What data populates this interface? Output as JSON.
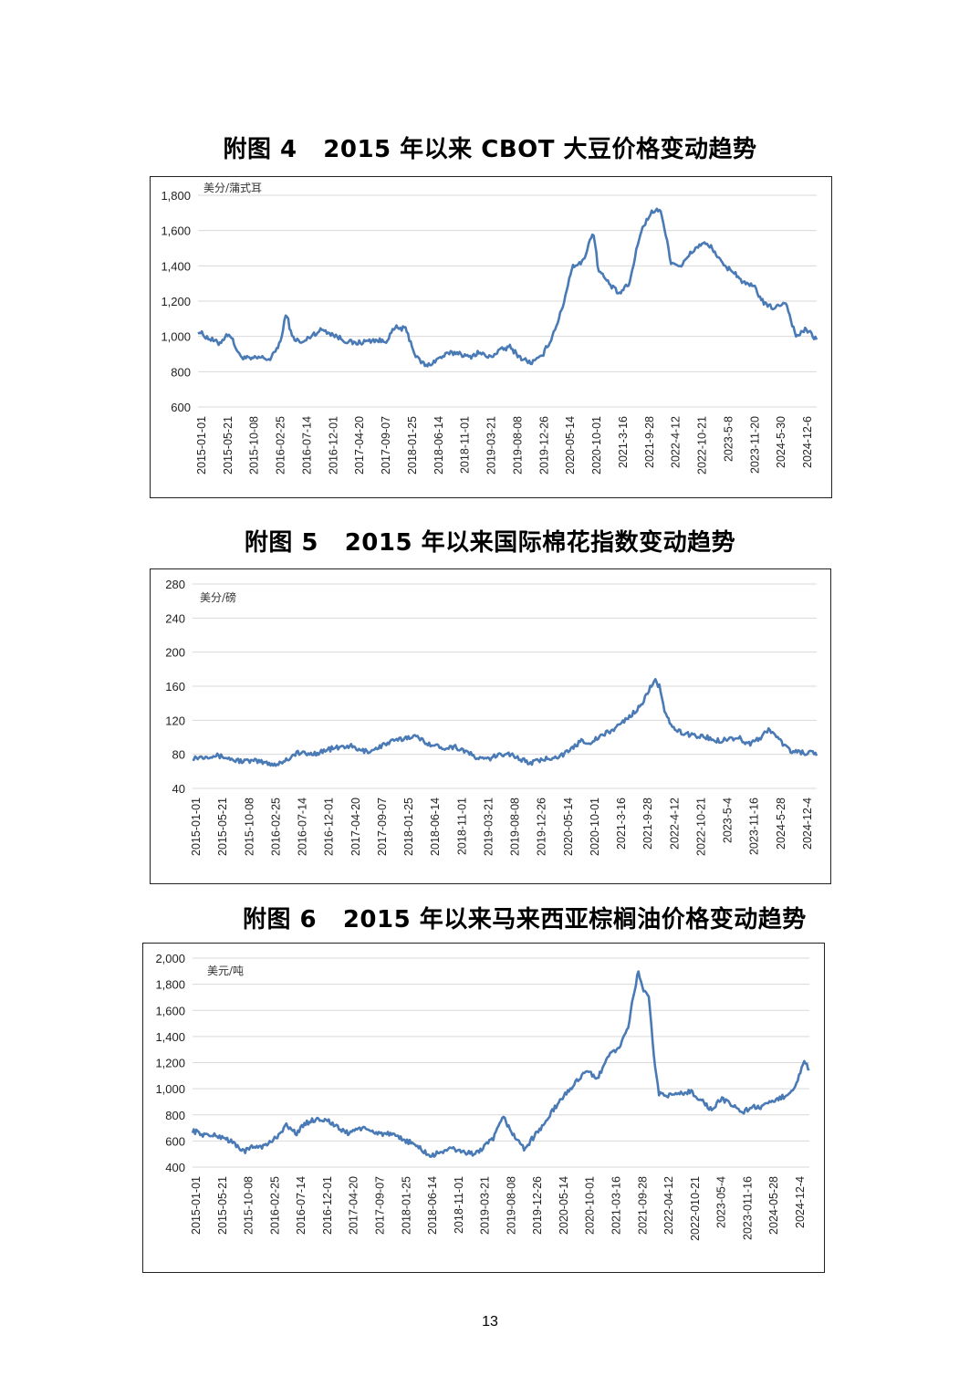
{
  "page": {
    "page_number": "13"
  },
  "figures": [
    {
      "label": "附图 4",
      "title": "2015 年以来 CBOT 大豆价格变动趋势"
    },
    {
      "label": "附图 5",
      "title": "2015 年以来国际棉花指数变动趋势"
    },
    {
      "label": "附图 6",
      "title": "2015 年以来马来西亚棕榈油价格变动趋势"
    }
  ],
  "chart_data": [
    {
      "type": "line",
      "unit": "美分/蒲式耳",
      "ylim": [
        600,
        1800
      ],
      "yticks": [
        "600",
        "800",
        "1,000",
        "1,200",
        "1,400",
        "1,600",
        "1,800"
      ],
      "grid": true,
      "xlabels": [
        "2015-01-01",
        "2015-05-21",
        "2015-10-08",
        "2016-02-25",
        "2016-07-14",
        "2016-12-01",
        "2017-04-20",
        "2017-09-07",
        "2018-01-25",
        "2018-06-14",
        "2018-11-01",
        "2019-03-21",
        "2019-08-08",
        "2019-12-26",
        "2020-05-14",
        "2020-10-01",
        "2021-3-16",
        "2021-9-28",
        "2022-4-12",
        "2022-10-21",
        "2023-5-8",
        "2023-11-20",
        "2024-5-30",
        "2024-12-6"
      ],
      "series": [
        {
          "color": "#4a7ab5",
          "x": [
            "2015-01",
            "2015-03",
            "2015-05",
            "2015-07",
            "2015-09",
            "2015-11",
            "2016-01",
            "2016-03",
            "2016-05",
            "2016-06",
            "2016-07",
            "2016-09",
            "2016-11",
            "2017-01",
            "2017-03",
            "2017-05",
            "2017-07",
            "2017-09",
            "2017-11",
            "2018-01",
            "2018-03",
            "2018-05",
            "2018-07",
            "2018-09",
            "2018-11",
            "2019-01",
            "2019-03",
            "2019-05",
            "2019-07",
            "2019-09",
            "2019-11",
            "2020-01",
            "2020-03",
            "2020-05",
            "2020-07",
            "2020-09",
            "2020-11",
            "2021-01",
            "2021-03",
            "2021-05",
            "2021-06",
            "2021-08",
            "2021-10",
            "2021-12",
            "2022-02",
            "2022-04",
            "2022-06",
            "2022-08",
            "2022-10",
            "2022-12",
            "2023-02",
            "2023-04",
            "2023-06",
            "2023-08",
            "2023-10",
            "2023-12",
            "2024-02",
            "2024-04",
            "2024-06",
            "2024-08",
            "2024-10",
            "2024-12"
          ],
          "y": [
            1030,
            990,
            960,
            1020,
            890,
            870,
            880,
            870,
            980,
            1140,
            1000,
            960,
            1010,
            1040,
            1010,
            980,
            960,
            970,
            980,
            970,
            1050,
            1040,
            880,
            830,
            870,
            900,
            910,
            880,
            910,
            880,
            920,
            940,
            880,
            850,
            880,
            990,
            1150,
            1400,
            1420,
            1600,
            1380,
            1300,
            1240,
            1300,
            1580,
            1700,
            1720,
            1420,
            1400,
            1480,
            1530,
            1500,
            1400,
            1370,
            1300,
            1280,
            1180,
            1160,
            1200,
            1000,
            1040,
            980
          ]
        }
      ]
    },
    {
      "type": "line",
      "unit": "美分/磅",
      "ylim": [
        40,
        280
      ],
      "yticks": [
        "40",
        "80",
        "120",
        "160",
        "200",
        "240",
        "280"
      ],
      "grid": true,
      "xlabels": [
        "2015-01-01",
        "2015-05-21",
        "2015-10-08",
        "2016-02-25",
        "2016-07-14",
        "2016-12-01",
        "2017-04-20",
        "2017-09-07",
        "2018-01-25",
        "2018-06-14",
        "2018-11-01",
        "2019-03-21",
        "2019-08-08",
        "2019-12-26",
        "2020-05-14",
        "2020-10-01",
        "2021-3-16",
        "2021-9-28",
        "2022-4-12",
        "2022-10-21",
        "2023-5-4",
        "2023-11-16",
        "2024-5-28",
        "2024-12-4"
      ],
      "series": [
        {
          "color": "#4a7ab5",
          "x": [
            "2015-01",
            "2015-03",
            "2015-05",
            "2015-07",
            "2015-09",
            "2015-11",
            "2016-01",
            "2016-03",
            "2016-05",
            "2016-07",
            "2016-09",
            "2016-11",
            "2017-01",
            "2017-03",
            "2017-05",
            "2017-07",
            "2017-09",
            "2017-11",
            "2018-01",
            "2018-03",
            "2018-05",
            "2018-07",
            "2018-09",
            "2018-11",
            "2019-01",
            "2019-03",
            "2019-05",
            "2019-07",
            "2019-09",
            "2019-11",
            "2020-01",
            "2020-03",
            "2020-05",
            "2020-07",
            "2020-09",
            "2020-11",
            "2021-01",
            "2021-03",
            "2021-05",
            "2021-07",
            "2021-09",
            "2021-11",
            "2022-01",
            "2022-03",
            "2022-05",
            "2022-06",
            "2022-07",
            "2022-09",
            "2022-11",
            "2023-01",
            "2023-03",
            "2023-05",
            "2023-07",
            "2023-09",
            "2023-11",
            "2024-01",
            "2024-03",
            "2024-05",
            "2024-07",
            "2024-09",
            "2024-11",
            "2024-12"
          ],
          "y": [
            76,
            77,
            79,
            77,
            73,
            72,
            72,
            70,
            68,
            74,
            82,
            80,
            82,
            86,
            88,
            90,
            84,
            84,
            90,
            95,
            98,
            102,
            96,
            90,
            88,
            89,
            84,
            76,
            74,
            78,
            82,
            76,
            70,
            72,
            76,
            78,
            84,
            96,
            94,
            102,
            108,
            118,
            128,
            142,
            168,
            160,
            128,
            108,
            104,
            102,
            100,
            96,
            98,
            100,
            92,
            98,
            110,
            96,
            84,
            82,
            82,
            78
          ]
        }
      ]
    },
    {
      "type": "line",
      "unit": "美元/吨",
      "ylim": [
        400,
        2000
      ],
      "yticks": [
        "400",
        "600",
        "800",
        "1,000",
        "1,200",
        "1,400",
        "1,600",
        "1,800",
        "2,000"
      ],
      "grid": true,
      "xlabels": [
        "2015-01-01",
        "2015-05-21",
        "2015-10-08",
        "2016-02-25",
        "2016-07-14",
        "2016-12-01",
        "2017-04-20",
        "2017-09-07",
        "2018-01-25",
        "2018-06-14",
        "2018-11-01",
        "2019-03-21",
        "2019-08-08",
        "2019-12-26",
        "2020-05-14",
        "2020-10-01",
        "2021-03-16",
        "2021-09-28",
        "2022-04-12",
        "2022-010-21",
        "2023-05-4",
        "2023-011-16",
        "2024-05-28",
        "2024-12-4"
      ],
      "series": [
        {
          "color": "#4a7ab5",
          "x": [
            "2015-01",
            "2015-03",
            "2015-05",
            "2015-07",
            "2015-09",
            "2015-11",
            "2016-01",
            "2016-03",
            "2016-05",
            "2016-07",
            "2016-09",
            "2016-11",
            "2017-01",
            "2017-03",
            "2017-05",
            "2017-07",
            "2017-09",
            "2017-11",
            "2018-01",
            "2018-03",
            "2018-05",
            "2018-07",
            "2018-09",
            "2018-11",
            "2019-01",
            "2019-03",
            "2019-05",
            "2019-07",
            "2019-09",
            "2019-11",
            "2020-01",
            "2020-03",
            "2020-05",
            "2020-07",
            "2020-09",
            "2020-11",
            "2021-01",
            "2021-03",
            "2021-05",
            "2021-07",
            "2021-09",
            "2021-11",
            "2022-01",
            "2022-02",
            "2022-03",
            "2022-04",
            "2022-05",
            "2022-06",
            "2022-07",
            "2022-09",
            "2022-11",
            "2023-01",
            "2023-03",
            "2023-05",
            "2023-07",
            "2023-09",
            "2023-11",
            "2024-01",
            "2024-03",
            "2024-05",
            "2024-07",
            "2024-09",
            "2024-11",
            "2024-12"
          ],
          "y": [
            680,
            650,
            640,
            630,
            580,
            520,
            560,
            560,
            620,
            720,
            660,
            740,
            770,
            760,
            700,
            660,
            700,
            680,
            660,
            650,
            620,
            590,
            540,
            480,
            520,
            540,
            520,
            500,
            540,
            620,
            780,
            640,
            540,
            640,
            740,
            860,
            960,
            1050,
            1150,
            1060,
            1250,
            1300,
            1450,
            1700,
            1900,
            1750,
            1700,
            1250,
            960,
            950,
            960,
            980,
            920,
            840,
            920,
            880,
            820,
            860,
            860,
            900,
            940,
            1000,
            1200,
            1150
          ]
        }
      ]
    }
  ]
}
